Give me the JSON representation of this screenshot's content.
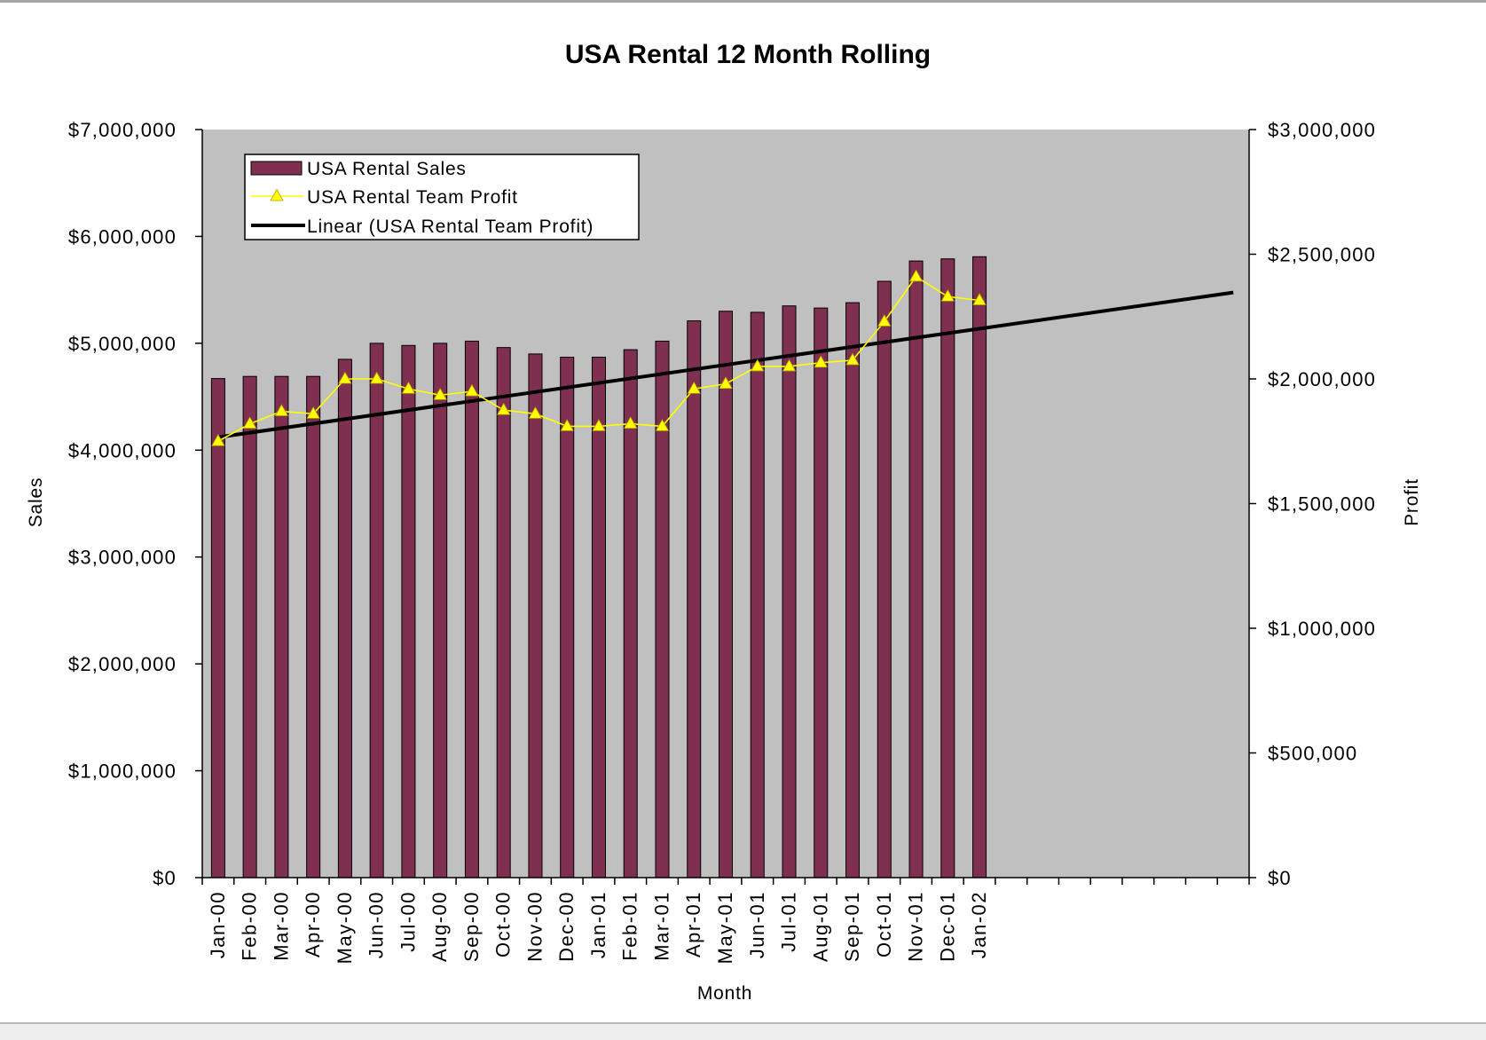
{
  "chart_data": {
    "type": "bar",
    "title": "USA Rental 12 Month Rolling",
    "xlabel": "Month",
    "categories": [
      "Jan-00",
      "Feb-00",
      "Mar-00",
      "Apr-00",
      "May-00",
      "Jun-00",
      "Jul-00",
      "Aug-00",
      "Sep-00",
      "Oct-00",
      "Nov-00",
      "Dec-00",
      "Jan-01",
      "Feb-01",
      "Mar-01",
      "Apr-01",
      "May-01",
      "Jun-01",
      "Jul-01",
      "Aug-01",
      "Sep-01",
      "Oct-01",
      "Nov-01",
      "Dec-01",
      "Jan-02"
    ],
    "series": [
      {
        "name": "USA Rental Sales",
        "type": "bar",
        "color": "#7F2F50",
        "values": [
          4670000,
          4690000,
          4690000,
          4690000,
          4850000,
          5000000,
          4980000,
          5000000,
          5020000,
          4960000,
          4900000,
          4870000,
          4870000,
          4940000,
          5020000,
          5210000,
          5300000,
          5290000,
          5350000,
          5330000,
          5380000,
          5580000,
          5770000,
          5790000,
          5810000
        ]
      },
      {
        "name": "USA Rental Team Profit",
        "type": "line",
        "color": "#FFFF00",
        "values": [
          1750000,
          1820000,
          1870000,
          1860000,
          2000000,
          2000000,
          1960000,
          1935000,
          1950000,
          1875000,
          1860000,
          1810000,
          1810000,
          1820000,
          1810000,
          1960000,
          1980000,
          2050000,
          2050000,
          2065000,
          2075000,
          2230000,
          2410000,
          2330000,
          2315000
        ]
      }
    ],
    "trendline": {
      "name": "Linear (USA Rental Team Profit)",
      "type": "linear",
      "forward_periods": 8,
      "color": "#000000"
    },
    "y_left": {
      "label": "Sales",
      "min": 0,
      "max": 7000000,
      "ticks": [
        {
          "value": 0,
          "label": "$0"
        },
        {
          "value": 1000000,
          "label": "$1,000,000"
        },
        {
          "value": 2000000,
          "label": "$2,000,000"
        },
        {
          "value": 3000000,
          "label": "$3,000,000"
        },
        {
          "value": 4000000,
          "label": "$4,000,000"
        },
        {
          "value": 5000000,
          "label": "$5,000,000"
        },
        {
          "value": 6000000,
          "label": "$6,000,000"
        },
        {
          "value": 7000000,
          "label": "$7,000,000"
        }
      ]
    },
    "y_right": {
      "label": "Profit",
      "min": 0,
      "max": 3000000,
      "ticks": [
        {
          "value": 0,
          "label": "$0"
        },
        {
          "value": 500000,
          "label": "$500,000"
        },
        {
          "value": 1000000,
          "label": "$1,000,000"
        },
        {
          "value": 1500000,
          "label": "$1,500,000"
        },
        {
          "value": 2000000,
          "label": "$2,000,000"
        },
        {
          "value": 2500000,
          "label": "$2,500,000"
        },
        {
          "value": 3000000,
          "label": "$3,000,000"
        }
      ]
    },
    "legend_position": "top-left",
    "grid": false,
    "plot_background": "#C0C0C0"
  }
}
